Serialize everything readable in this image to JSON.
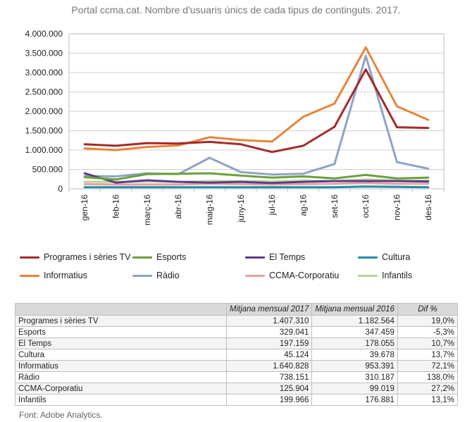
{
  "title": "Portal ccma.cat. Nombre d'usuaris únics de cada tipus de continguts. 2017.",
  "chart_data": {
    "type": "line",
    "title": "Portal ccma.cat. Nombre d'usuaris únics de cada tipus de continguts. 2017.",
    "categories": [
      "gen-16",
      "feb-16",
      "març-16",
      "abr-16",
      "maig-16",
      "juny-16",
      "jul-16",
      "ag-16",
      "set-16",
      "oct-16",
      "nov-16",
      "des-16"
    ],
    "yticks": [
      "0",
      "500.000",
      "1.000.000",
      "1.500.000",
      "2.000.000",
      "2.500.000",
      "3.000.000",
      "3.500.000",
      "4.000.000"
    ],
    "ylim": [
      0,
      4000000
    ],
    "grid": true,
    "legend_position": "bottom",
    "series": [
      {
        "name": "Programes i sèries TV",
        "color": "#a52a2a",
        "values": [
          1150000,
          1110000,
          1180000,
          1170000,
          1210000,
          1150000,
          950000,
          1110000,
          1600000,
          3080000,
          1590000,
          1570000
        ]
      },
      {
        "name": "Esports",
        "color": "#6aa13a",
        "values": [
          300000,
          240000,
          380000,
          390000,
          400000,
          340000,
          290000,
          320000,
          270000,
          360000,
          270000,
          290000
        ]
      },
      {
        "name": "El Temps",
        "color": "#5b3b8c",
        "values": [
          400000,
          160000,
          220000,
          180000,
          160000,
          180000,
          150000,
          180000,
          200000,
          200000,
          200000,
          190000
        ]
      },
      {
        "name": "Cultura",
        "color": "#1f8ea6",
        "values": [
          40000,
          40000,
          40000,
          40000,
          40000,
          40000,
          40000,
          40000,
          40000,
          60000,
          50000,
          40000
        ]
      },
      {
        "name": "Informatius",
        "color": "#e7843a",
        "values": [
          1040000,
          1000000,
          1080000,
          1120000,
          1330000,
          1260000,
          1220000,
          1860000,
          2200000,
          3650000,
          2130000,
          1780000
        ]
      },
      {
        "name": "Ràdio",
        "color": "#8ea3c7",
        "values": [
          330000,
          320000,
          400000,
          380000,
          800000,
          430000,
          370000,
          390000,
          640000,
          3430000,
          690000,
          520000
        ]
      },
      {
        "name": "CCMA-Corporatiu",
        "color": "#e8a0a0",
        "values": [
          120000,
          110000,
          110000,
          110000,
          130000,
          120000,
          110000,
          120000,
          130000,
          150000,
          130000,
          130000
        ]
      },
      {
        "name": "Infantils",
        "color": "#b9d39a",
        "values": [
          180000,
          180000,
          190000,
          180000,
          200000,
          200000,
          190000,
          210000,
          200000,
          240000,
          210000,
          210000
        ]
      }
    ]
  },
  "table": {
    "headers": [
      "",
      "Mitjana mensual 2017",
      "Mitjana mensual 2016",
      "Dif %"
    ],
    "rows": [
      [
        "Programes i sèries TV",
        "1.407.310",
        "1.182.564",
        "19,0%"
      ],
      [
        "Esports",
        "329.041",
        "347.459",
        "-5,3%"
      ],
      [
        "El Temps",
        "197.159",
        "178.055",
        "10,7%"
      ],
      [
        "Cultura",
        "45.124",
        "39.678",
        "13,7%"
      ],
      [
        "Informatius",
        "1.640.828",
        "953.391",
        "72,1%"
      ],
      [
        "Ràdio",
        "738.151",
        "310.187",
        "138,0%"
      ],
      [
        "CCMA-Corporatiu",
        "125.904",
        "99.019",
        "27,2%"
      ],
      [
        "Infantils",
        "199.966",
        "176.881",
        "13,1%"
      ]
    ]
  },
  "source": "Font: Adobe Analytics."
}
